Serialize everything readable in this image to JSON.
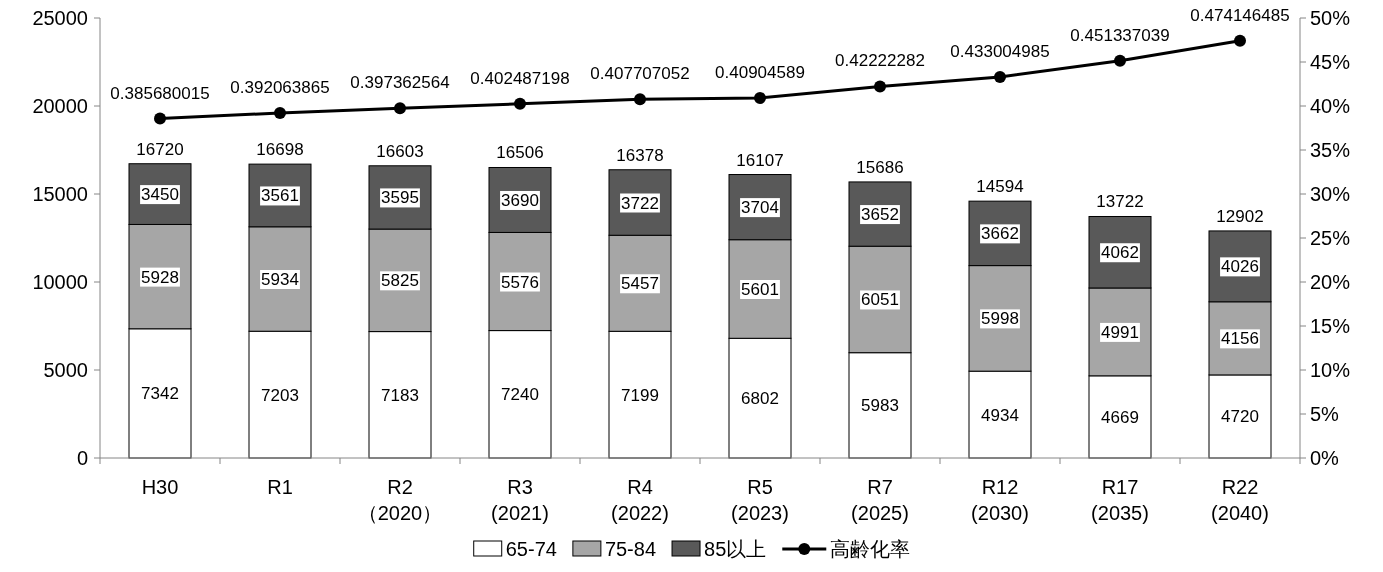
{
  "chart_data": {
    "type": "bar",
    "stacked": true,
    "categories": [
      "H30",
      "R1",
      "R2\n（2020）",
      "R3\n(2021)",
      "R4\n(2022)",
      "R5\n(2023)",
      "R7\n(2025)",
      "R12\n(2030)",
      "R17\n(2035)",
      "R22\n(2040)"
    ],
    "series": [
      {
        "name": "65-74",
        "color": "#ffffff",
        "values": [
          7342,
          7203,
          7183,
          7240,
          7199,
          6802,
          5983,
          4934,
          4669,
          4720
        ]
      },
      {
        "name": "75-84",
        "color": "#a6a6a6",
        "values": [
          5928,
          5934,
          5825,
          5576,
          5457,
          5601,
          6051,
          5998,
          4991,
          4156
        ]
      },
      {
        "name": "85以上",
        "color": "#595959",
        "values": [
          3450,
          3561,
          3595,
          3690,
          3722,
          3704,
          3652,
          3662,
          4062,
          4026
        ]
      },
      {
        "name": "高齢化率",
        "type": "line",
        "axis": "y2",
        "color": "#000000",
        "marker": "circle",
        "values": [
          0.385680015,
          0.392063865,
          0.397362564,
          0.402487198,
          0.407707052,
          0.40904589,
          0.42222282,
          0.433004985,
          0.451337039,
          0.474146485
        ]
      }
    ],
    "totals": [
      "16720",
      "16698",
      "16603",
      "16506",
      "16378",
      "16107",
      "15686",
      "14594",
      "13722",
      "12902"
    ],
    "data_labels": true,
    "ylim": [
      0,
      25000
    ],
    "yticks": [
      0,
      5000,
      10000,
      15000,
      20000,
      25000
    ],
    "y2lim": [
      0,
      0.5
    ],
    "y2ticks": [
      {
        "value": 0,
        "label": "0%"
      },
      {
        "value": 0.05,
        "label": "5%"
      },
      {
        "value": 0.1,
        "label": "10%"
      },
      {
        "value": 0.15,
        "label": "15%"
      },
      {
        "value": 0.2,
        "label": "20%"
      },
      {
        "value": 0.25,
        "label": "25%"
      },
      {
        "value": 0.3,
        "label": "30%"
      },
      {
        "value": 0.35,
        "label": "35%"
      },
      {
        "value": 0.4,
        "label": "40%"
      },
      {
        "value": 0.45,
        "label": "45%"
      },
      {
        "value": 0.5,
        "label": "50%"
      }
    ],
    "legend": "bottom",
    "grid": false
  }
}
